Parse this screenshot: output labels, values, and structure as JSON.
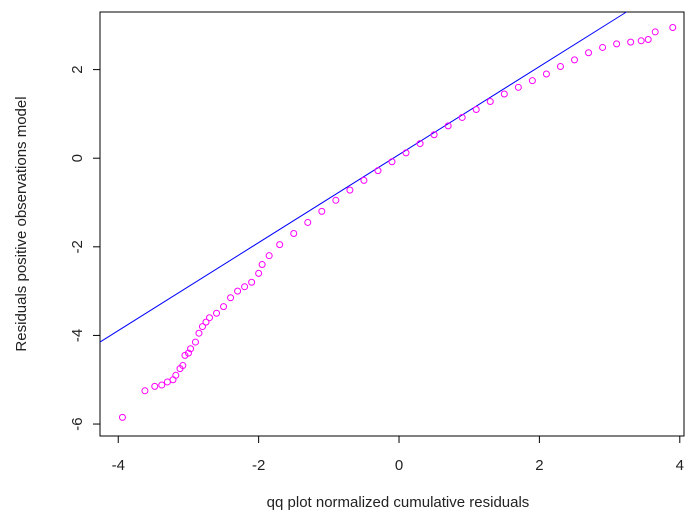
{
  "chart_data": {
    "type": "scatter",
    "x_label": "qq plot normalized cumulative residuals",
    "y_label": "Residuals positive observations model",
    "xlim": [
      -4.26,
      4.06
    ],
    "ylim": [
      -6.27,
      3.3
    ],
    "xticks": [
      -4,
      -2,
      0,
      2,
      4
    ],
    "yticks": [
      -6,
      -4,
      -2,
      0,
      2
    ],
    "points": {
      "color": "#ff00ff",
      "x": [
        -3.94,
        -3.62,
        -3.48,
        -3.38,
        -3.3,
        -3.22,
        -3.18,
        -3.12,
        -3.08,
        -3.05,
        -3.0,
        -2.97,
        -2.9,
        -2.85,
        -2.8,
        -2.75,
        -2.7,
        -2.6,
        -2.5,
        -2.4,
        -2.3,
        -2.2,
        -2.1,
        -2.0,
        -1.95,
        -1.85,
        -1.7,
        -1.5,
        -1.3,
        -1.1,
        -0.9,
        -0.7,
        -0.5,
        -0.3,
        -0.1,
        0.1,
        0.3,
        0.5,
        0.7,
        0.9,
        1.1,
        1.3,
        1.5,
        1.7,
        1.9,
        2.1,
        2.3,
        2.5,
        2.7,
        2.9,
        3.1,
        3.3,
        3.45,
        3.55,
        3.65,
        3.9
      ],
      "y": [
        -5.85,
        -5.25,
        -5.15,
        -5.12,
        -5.05,
        -5.0,
        -4.9,
        -4.75,
        -4.68,
        -4.45,
        -4.4,
        -4.3,
        -4.15,
        -3.95,
        -3.8,
        -3.7,
        -3.6,
        -3.5,
        -3.35,
        -3.15,
        -3.0,
        -2.9,
        -2.8,
        -2.6,
        -2.4,
        -2.2,
        -1.95,
        -1.7,
        -1.45,
        -1.2,
        -0.95,
        -0.72,
        -0.5,
        -0.28,
        -0.08,
        0.12,
        0.33,
        0.53,
        0.73,
        0.92,
        1.1,
        1.28,
        1.45,
        1.6,
        1.75,
        1.9,
        2.07,
        2.22,
        2.38,
        2.5,
        2.58,
        2.62,
        2.65,
        2.68,
        2.85,
        2.95
      ]
    },
    "reference_line": {
      "color": "#0000ff",
      "x": [
        -4.26,
        3.24
      ],
      "y": [
        -4.15,
        3.3
      ]
    }
  }
}
